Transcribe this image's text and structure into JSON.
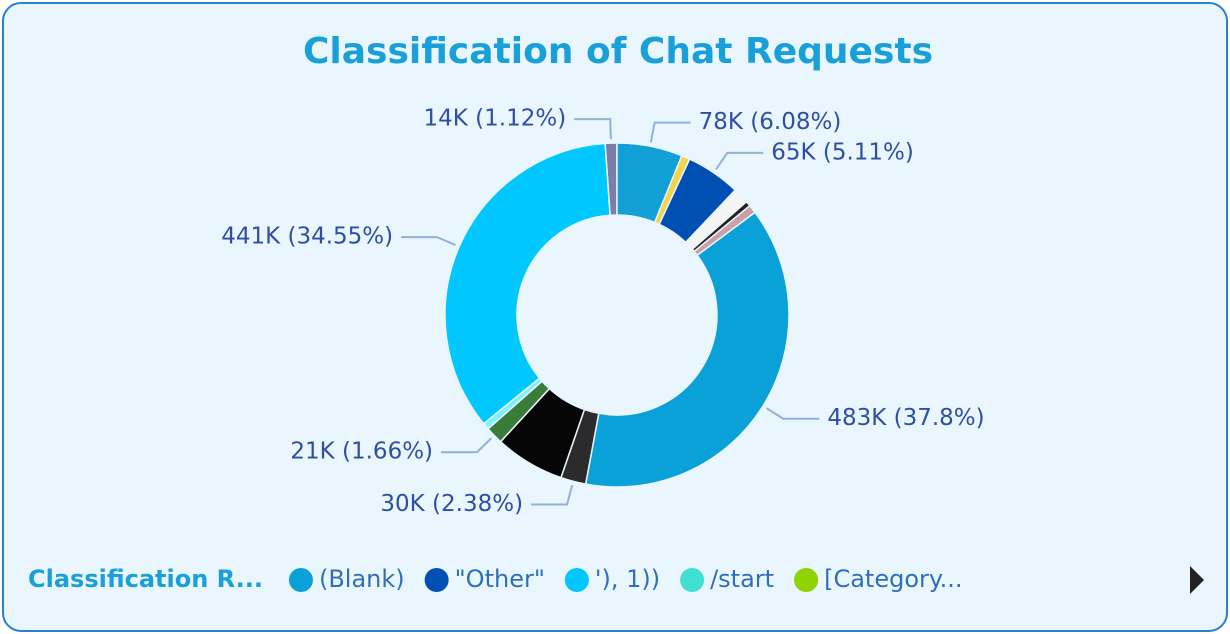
{
  "chart_data": {
    "type": "donut",
    "title": "Classification of Chat Requests",
    "values": [
      14,
      78,
      10,
      65,
      19,
      6,
      10,
      483,
      30,
      83,
      21,
      8,
      441
    ],
    "value_labels": [
      "14K (1.12%)",
      "78K (6.08%)",
      null,
      "65K (5.11%)",
      null,
      null,
      null,
      "483K (37.8%)",
      "30K (2.38%)",
      null,
      "21K (1.66%)",
      null,
      "441K (34.55%)"
    ],
    "colors": [
      "#7a7fa8",
      "#12a0d7",
      "#f2d54a",
      "#0050b4",
      "#f4f4f4",
      "#222222",
      "#c9a0a6",
      "#0aa0d8",
      "#2b2b2e",
      "#050505",
      "#3a7d3a",
      "#7ff0ff",
      "#00c8ff"
    ],
    "legend": {
      "title": "Classification R...",
      "items": [
        {
          "name": "(Blank)",
          "color": "#0aa0d8"
        },
        {
          "name": "\"Other\"",
          "color": "#0050b4"
        },
        {
          "name": "'), 1))",
          "color": "#00c8ff"
        },
        {
          "name": "/start",
          "color": "#40e0d0"
        },
        {
          "name": "[Category...",
          "color": "#8fd400"
        }
      ]
    }
  }
}
